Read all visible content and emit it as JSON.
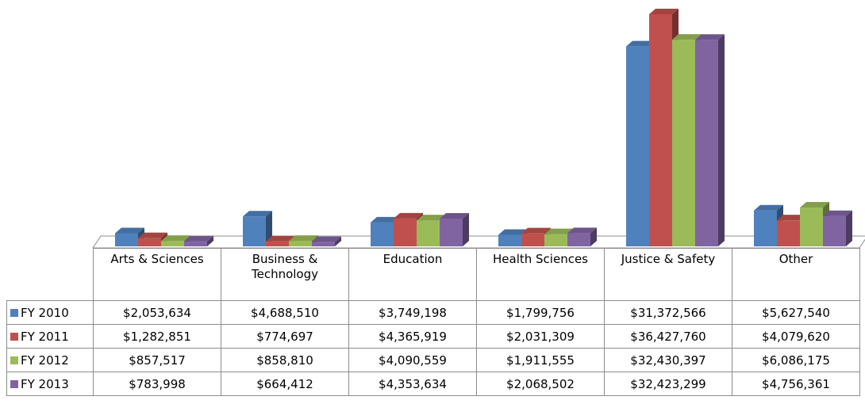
{
  "chart_data": {
    "type": "bar",
    "categories": [
      "Arts & Sciences",
      "Business & Technology",
      "Education",
      "Health Sciences",
      "Justice & Safety",
      "Other"
    ],
    "series": [
      {
        "name": "FY 2010",
        "color": "#4f81bd",
        "values": [
          2053634,
          4688510,
          3749198,
          1799756,
          31372566,
          5627540
        ],
        "value_labels": [
          "$2,053,634",
          "$4,688,510",
          "$3,749,198",
          "$1,799,756",
          "$31,372,566",
          "$5,627,540"
        ]
      },
      {
        "name": "FY 2011",
        "color": "#c0504d",
        "values": [
          1282851,
          774697,
          4365919,
          2031309,
          36427760,
          4079620
        ],
        "value_labels": [
          "$1,282,851",
          "$774,697",
          "$4,365,919",
          "$2,031,309",
          "$36,427,760",
          "$4,079,620"
        ]
      },
      {
        "name": "FY 2012",
        "color": "#9bbb59",
        "values": [
          857517,
          858810,
          4090559,
          1911555,
          32430397,
          6086175
        ],
        "value_labels": [
          "$857,517",
          "$858,810",
          "$4,090,559",
          "$1,911,555",
          "$32,430,397",
          "$6,086,175"
        ]
      },
      {
        "name": "FY 2013",
        "color": "#8064a2",
        "values": [
          783998,
          664412,
          4353634,
          2068502,
          32423299,
          4756361
        ],
        "value_labels": [
          "$783,998",
          "$664,412",
          "$4,353,634",
          "$2,068,502",
          "$32,423,299",
          "$4,756,361"
        ]
      }
    ]
  }
}
